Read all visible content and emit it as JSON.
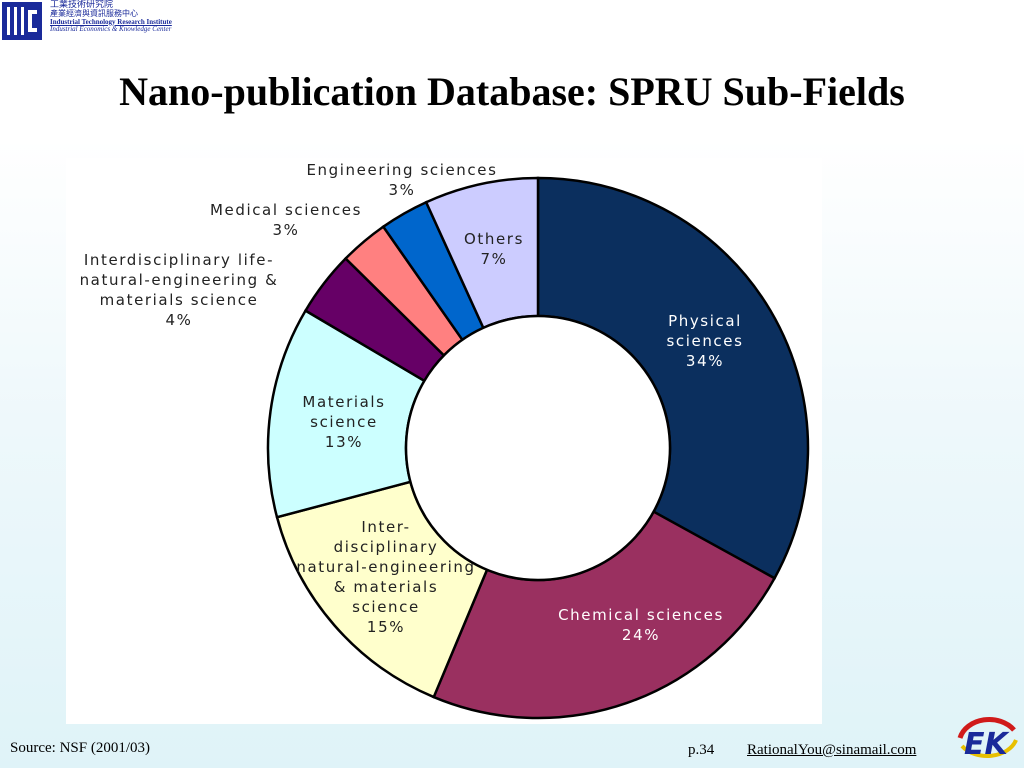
{
  "header": {
    "org_zh_1": "工業技術研究院",
    "org_zh_2": "產業經濟與資訊服務中心",
    "org_en_1": "Industrial Technology Research Institute",
    "org_en_2": "Industrial Economics & Knowledge Center",
    "logo_icon": "itri-logo-icon"
  },
  "title": "Nano-publication Database: SPRU Sub-Fields",
  "chart_data": {
    "type": "pie",
    "donut": true,
    "title": "",
    "slices": [
      {
        "lines": [
          "Physical",
          "sciences",
          "34%"
        ],
        "value": 34,
        "color": "#0b2f5e"
      },
      {
        "lines": [
          "Chemical sciences",
          "24%"
        ],
        "value": 24,
        "color": "#9a3060"
      },
      {
        "lines": [
          "Inter-",
          "disciplinary",
          "natural-engineering",
          "& materials",
          "science",
          "15%"
        ],
        "value": 15,
        "color": "#ffffcc"
      },
      {
        "lines": [
          "Materials",
          "science",
          "13%"
        ],
        "value": 13,
        "color": "#ccffff"
      },
      {
        "lines": [
          "Interdisciplinary life-",
          "natural-engineering &",
          "materials science",
          "4%"
        ],
        "value": 4,
        "color": "#660066"
      },
      {
        "lines": [
          "Medical sciences",
          "3%"
        ],
        "value": 3,
        "color": "#ff8080"
      },
      {
        "lines": [
          "Engineering sciences",
          "3%"
        ],
        "value": 3,
        "color": "#0066cc"
      },
      {
        "lines": [
          "Others",
          "7%"
        ],
        "value": 7,
        "color": "#ccccff"
      }
    ]
  },
  "footer": {
    "source": "Source: NSF (2001/03)",
    "page": "p.34",
    "email": "RationalYou@sinamail.com",
    "iek_logo_icon": "iek-logo-icon"
  }
}
